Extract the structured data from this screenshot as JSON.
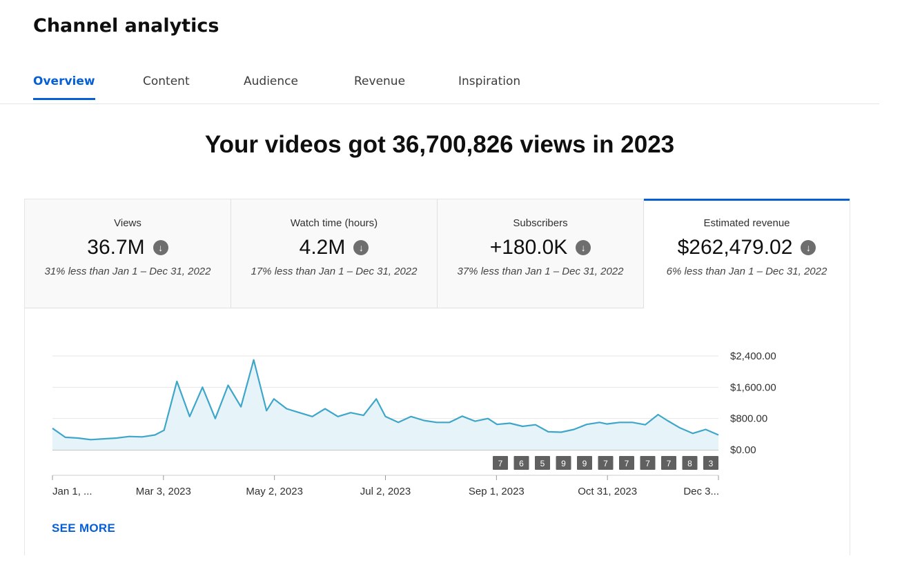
{
  "page": {
    "title": "Channel analytics"
  },
  "tabs": [
    {
      "label": "Overview",
      "active": true
    },
    {
      "label": "Content",
      "active": false
    },
    {
      "label": "Audience",
      "active": false
    },
    {
      "label": "Revenue",
      "active": false
    },
    {
      "label": "Inspiration",
      "active": false
    }
  ],
  "headline": "Your videos got 36,700,826 views in 2023",
  "metrics": [
    {
      "label": "Views",
      "value": "36.7M",
      "trend_icon": "arrow-down-icon",
      "comparison": "31% less than Jan 1 – Dec 31, 2022",
      "selected": false
    },
    {
      "label": "Watch time (hours)",
      "value": "4.2M",
      "trend_icon": "arrow-down-icon",
      "comparison": "17% less than Jan 1 – Dec 31, 2022",
      "selected": false
    },
    {
      "label": "Subscribers",
      "value": "+180.0K",
      "trend_icon": "arrow-down-icon",
      "comparison": "37% less than Jan 1 – Dec 31, 2022",
      "selected": false
    },
    {
      "label": "Estimated revenue",
      "value": "$262,479.02",
      "trend_icon": "arrow-down-icon",
      "comparison": "6% less than Jan 1 – Dec 31, 2022",
      "selected": true
    }
  ],
  "see_more": "SEE MORE",
  "colors": {
    "accent": "#065fd4",
    "line": "#3ea6c9",
    "fill": "#e6f3f8",
    "badge": "#606060"
  },
  "chart_data": {
    "type": "area",
    "y_ticks": [
      "$2,400.00",
      "$1,600.00",
      "$800.00",
      "$0.00"
    ],
    "y_values": [
      2400,
      1600,
      800,
      0
    ],
    "ylim": [
      0,
      2400
    ],
    "x_ticks": [
      "Jan 1, ...",
      "Mar 3, 2023",
      "May 2, 2023",
      "Jul 2, 2023",
      "Sep 1, 2023",
      "Oct 31, 2023",
      "Dec 3..."
    ],
    "badges": [
      "7",
      "6",
      "5",
      "9",
      "9",
      "7",
      "7",
      "7",
      "7",
      "8",
      "3"
    ],
    "series": [
      {
        "x": [
          "2023-01-01",
          "2023-01-08",
          "2023-01-15",
          "2023-01-22",
          "2023-01-29",
          "2023-02-05",
          "2023-02-12",
          "2023-02-19",
          "2023-02-26",
          "2023-03-03",
          "2023-03-10",
          "2023-03-17",
          "2023-03-24",
          "2023-03-31",
          "2023-04-07",
          "2023-04-14",
          "2023-04-21",
          "2023-04-28",
          "2023-05-02",
          "2023-05-09",
          "2023-05-16",
          "2023-05-23",
          "2023-05-30",
          "2023-06-06",
          "2023-06-13",
          "2023-06-20",
          "2023-06-27",
          "2023-07-02",
          "2023-07-09",
          "2023-07-16",
          "2023-07-23",
          "2023-07-30",
          "2023-08-06",
          "2023-08-13",
          "2023-08-20",
          "2023-08-27",
          "2023-09-01",
          "2023-09-08",
          "2023-09-15",
          "2023-09-22",
          "2023-09-29",
          "2023-10-06",
          "2023-10-13",
          "2023-10-20",
          "2023-10-27",
          "2023-10-31",
          "2023-11-07",
          "2023-11-14",
          "2023-11-21",
          "2023-11-28",
          "2023-12-03",
          "2023-12-10",
          "2023-12-17",
          "2023-12-24",
          "2023-12-31"
        ],
        "values": [
          550,
          320,
          300,
          260,
          280,
          300,
          340,
          330,
          380,
          500,
          1750,
          850,
          1600,
          800,
          1650,
          1100,
          2300,
          1000,
          1300,
          1050,
          950,
          850,
          1050,
          850,
          950,
          880,
          1300,
          850,
          700,
          850,
          750,
          700,
          700,
          860,
          730,
          800,
          650,
          680,
          600,
          640,
          460,
          450,
          520,
          650,
          700,
          660,
          700,
          700,
          640,
          900,
          750,
          560,
          420,
          520,
          380
        ]
      }
    ]
  }
}
